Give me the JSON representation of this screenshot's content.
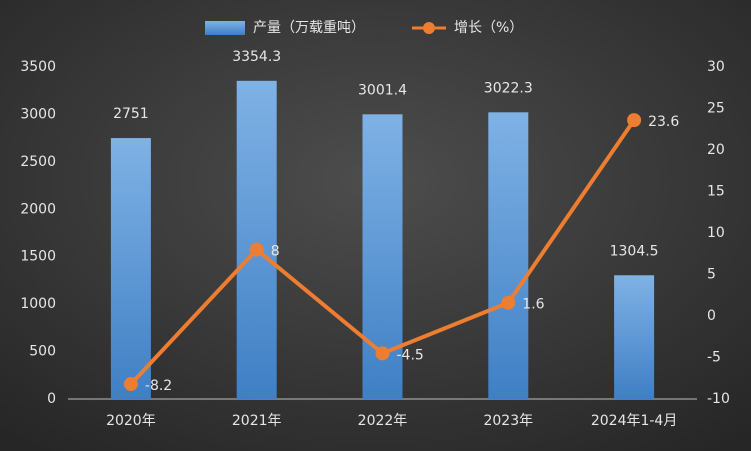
{
  "chart_data": {
    "type": "bar",
    "categories": [
      "2020年",
      "2021年",
      "2022年",
      "2023年",
      "2024年1-4月"
    ],
    "series": [
      {
        "name": "产量（万载重吨）",
        "color": "#5b9bd5",
        "values": [
          2751,
          3354.3,
          3001.4,
          3022.3,
          1304.5
        ]
      },
      {
        "name": "增长（%）",
        "color": "#ed7d31",
        "axis": "y2",
        "values": [
          -8.2,
          8,
          -4.5,
          1.6,
          23.6
        ]
      }
    ],
    "ylim": [
      0,
      3500
    ],
    "yticks": [
      0,
      500,
      1000,
      1500,
      2000,
      2500,
      3000,
      3500
    ],
    "y2lim": [
      -10,
      30
    ],
    "y2ticks": [
      -10,
      -5,
      0,
      5,
      10,
      15,
      20,
      25,
      30
    ],
    "grid": false
  }
}
